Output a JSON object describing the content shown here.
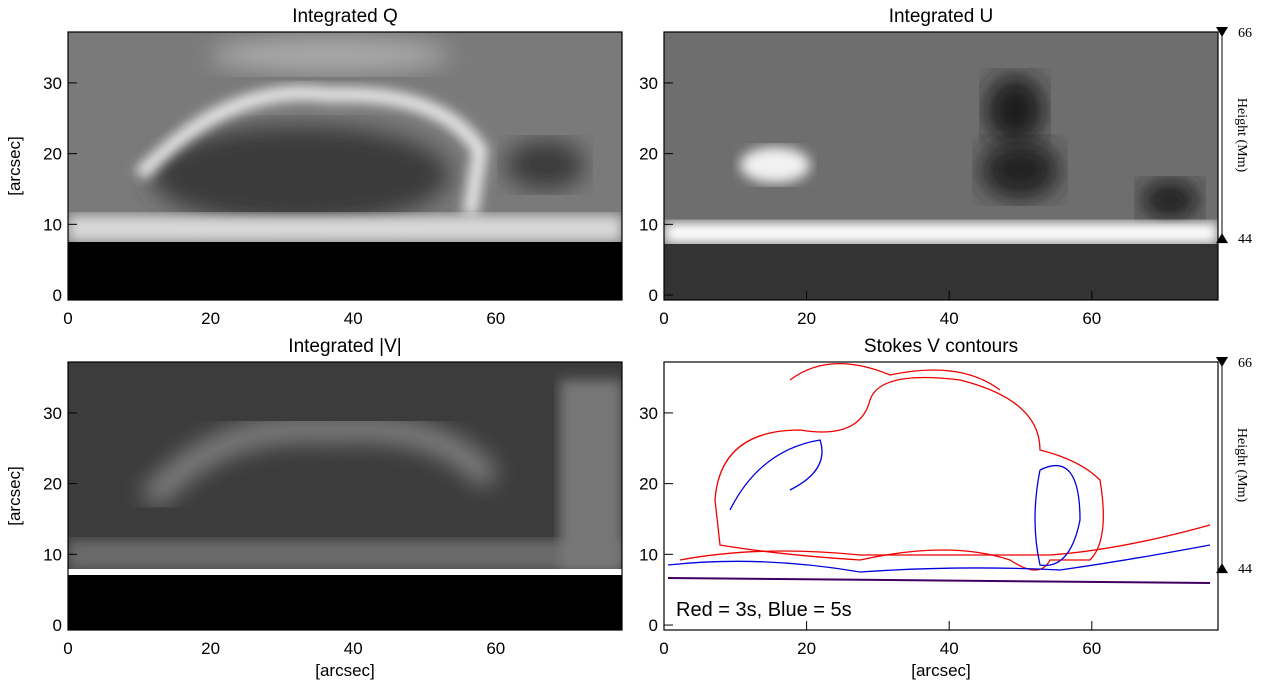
{
  "chart_data": [
    {
      "type": "image",
      "title": "Integrated Q",
      "ylabel": "[arcsec]",
      "xlim": [
        0,
        77.7
      ],
      "ylim": [
        -0.7,
        37.2
      ],
      "xticks": [
        0,
        20,
        40,
        60
      ],
      "yticks": [
        0,
        10,
        20,
        30
      ]
    },
    {
      "type": "image",
      "title": "Integrated U",
      "xlim": [
        0,
        77.7
      ],
      "ylim": [
        -0.7,
        37.2
      ],
      "xticks": [
        0,
        20,
        40,
        60
      ],
      "yticks": [
        0,
        10,
        20,
        30
      ],
      "y2label": "Height (Mm)",
      "y2lim": [
        37.4,
        66
      ],
      "y2ticks": [
        44,
        66
      ]
    },
    {
      "type": "image",
      "title": "Integrated |V|",
      "ylabel": "[arcsec]",
      "xlabel": "[arcsec]",
      "xlim": [
        0,
        77.7
      ],
      "ylim": [
        -0.7,
        37.2
      ],
      "xticks": [
        0,
        20,
        40,
        60
      ],
      "yticks": [
        0,
        10,
        20,
        30
      ]
    },
    {
      "type": "contour",
      "title": "Stokes V contours",
      "xlabel": "[arcsec]",
      "annotation": "Red = 3s, Blue = 5s",
      "xlim": [
        0,
        77.7
      ],
      "ylim": [
        -0.7,
        37.2
      ],
      "xticks": [
        0,
        20,
        40,
        60
      ],
      "yticks": [
        0,
        10,
        20,
        30
      ],
      "y2label": "Height (Mm)",
      "y2lim": [
        37.4,
        66
      ],
      "y2ticks": [
        44,
        66
      ]
    }
  ]
}
